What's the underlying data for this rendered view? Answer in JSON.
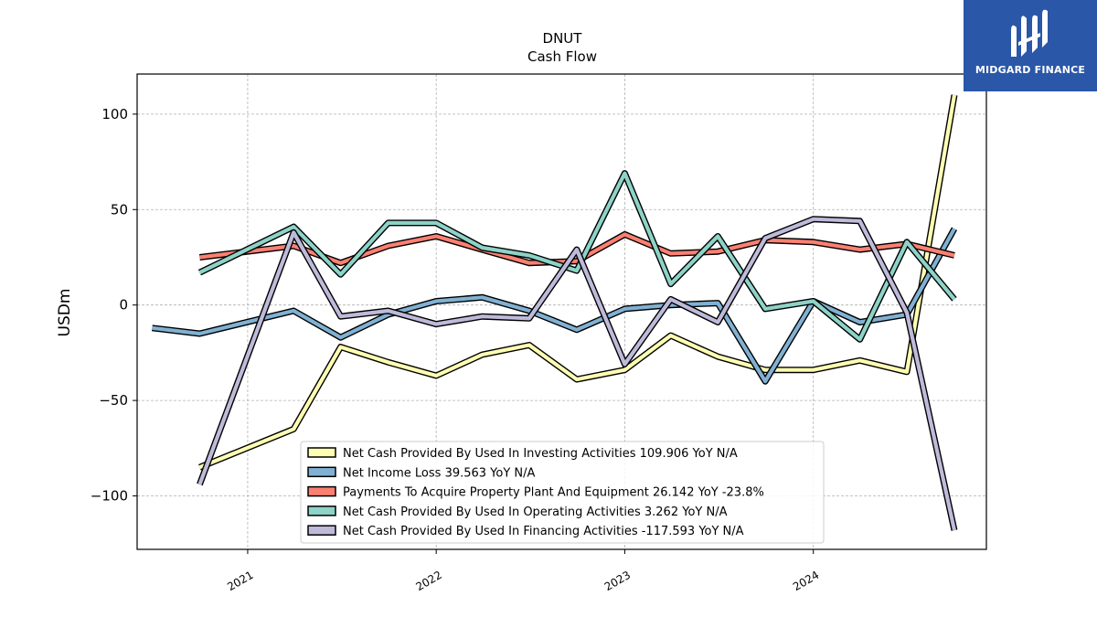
{
  "brand": {
    "name": "MIDGARD FINANCE",
    "bg_color": "#2a57a8"
  },
  "chart_data": {
    "type": "line",
    "title": "DNUT",
    "subtitle": "Cash Flow",
    "xlabel": "",
    "ylabel": "USDm",
    "xlim": [
      "2020-06-01",
      "2024-12-01"
    ],
    "ylim": [
      -128,
      121
    ],
    "yticks": [
      100,
      50,
      0,
      -50,
      -100
    ],
    "ytick_labels": [
      "100",
      "50",
      "0",
      "−50",
      "−100"
    ],
    "xticks": [
      "2021-01-01",
      "2022-01-01",
      "2023-01-01",
      "2024-01-01"
    ],
    "xtick_labels": [
      "2021",
      "2022",
      "2023",
      "2024"
    ],
    "grid": true,
    "legend_position": "bottom-center",
    "series": [
      {
        "name": "Net Cash Provided By Used In Investing Activities",
        "legend": "Net Cash Provided By Used In Investing Activities  109.906 YoY N/A",
        "color": "#ffffb3",
        "x": [
          "2020-09-30",
          "2021-03-31",
          "2021-06-30",
          "2021-09-30",
          "2022-01-01",
          "2022-03-31",
          "2022-06-30",
          "2022-09-30",
          "2023-01-01",
          "2023-03-31",
          "2023-06-30",
          "2023-09-30",
          "2024-01-01",
          "2024-03-31",
          "2024-06-30",
          "2024-09-30"
        ],
        "y": [
          -85,
          -65,
          -22,
          -30,
          -37,
          -26,
          -21,
          -39,
          -34,
          -16,
          -27,
          -34,
          -34,
          -29,
          -35,
          110
        ]
      },
      {
        "name": "Net Income Loss",
        "legend": "Net Income Loss  39.563 YoY N/A",
        "color": "#80b1d3",
        "x": [
          "2020-06-30",
          "2020-09-30",
          "2021-03-31",
          "2021-06-30",
          "2021-09-30",
          "2022-01-01",
          "2022-03-31",
          "2022-06-30",
          "2022-09-30",
          "2023-01-01",
          "2023-03-31",
          "2023-06-30",
          "2023-09-30",
          "2024-01-01",
          "2024-03-31",
          "2024-06-30",
          "2024-09-30"
        ],
        "y": [
          -12,
          -15,
          -3,
          -17,
          -5,
          2,
          4,
          -3,
          -13,
          -2,
          0,
          1,
          -40,
          2,
          -9,
          -5,
          40
        ]
      },
      {
        "name": "Payments To Acquire Property Plant And Equipment",
        "legend": "Payments To Acquire Property Plant And Equipment  26.142 YoY -23.8%",
        "color": "#fb8072",
        "x": [
          "2020-09-30",
          "2021-03-31",
          "2021-06-30",
          "2021-09-30",
          "2022-01-01",
          "2022-03-31",
          "2022-06-30",
          "2022-09-30",
          "2023-01-01",
          "2023-03-31",
          "2023-06-30",
          "2023-09-30",
          "2024-01-01",
          "2024-03-31",
          "2024-06-30",
          "2024-09-30"
        ],
        "y": [
          25,
          31,
          22,
          31,
          36,
          29,
          22,
          23,
          37,
          27,
          28,
          34,
          33,
          29,
          32,
          26
        ]
      },
      {
        "name": "Net Cash Provided By Used In Operating Activities",
        "legend": "Net Cash Provided By Used In Operating Activities  3.262 YoY N/A",
        "color": "#8dd3c7",
        "x": [
          "2020-09-30",
          "2021-03-31",
          "2021-06-30",
          "2021-09-30",
          "2022-01-01",
          "2022-03-31",
          "2022-06-30",
          "2022-09-30",
          "2023-01-01",
          "2023-03-31",
          "2023-06-30",
          "2023-09-30",
          "2024-01-01",
          "2024-03-31",
          "2024-06-30",
          "2024-09-30"
        ],
        "y": [
          17,
          41,
          16,
          43,
          43,
          30,
          26,
          18,
          69,
          11,
          36,
          -2,
          2,
          -18,
          33,
          3
        ]
      },
      {
        "name": "Net Cash Provided By Used In Financing Activities",
        "legend": "Net Cash Provided By Used In Financing Activities  -117.593 YoY N/A",
        "color": "#bebada",
        "x": [
          "2020-09-30",
          "2021-03-31",
          "2021-06-30",
          "2021-09-30",
          "2022-01-01",
          "2022-03-31",
          "2022-06-30",
          "2022-09-30",
          "2023-01-01",
          "2023-03-31",
          "2023-06-30",
          "2023-09-30",
          "2024-01-01",
          "2024-03-31",
          "2024-06-30",
          "2024-09-30"
        ],
        "y": [
          -94,
          38,
          -6,
          -3,
          -10,
          -6,
          -7,
          29,
          -31,
          3,
          -9,
          35,
          45,
          44,
          -4,
          -118
        ]
      }
    ]
  }
}
